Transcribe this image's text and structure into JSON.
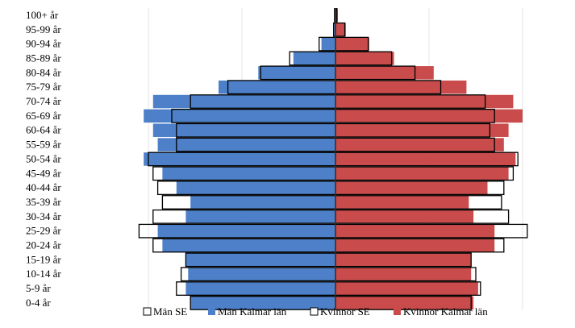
{
  "chart_data": {
    "type": "bar",
    "orientation": "horizontal",
    "categories": [
      "0-4 år",
      "5-9 år",
      "10-14 år",
      "15-19 år",
      "20-24 år",
      "25-29 år",
      "30-34 år",
      "35-39 år",
      "40-44 år",
      "45-49 år",
      "50-54 år",
      "55-59 år",
      "60-64 år",
      "65-69 år",
      "70-74 år",
      "75-79 år",
      "80-84 år",
      "85-89 år",
      "90-94 år",
      "95-99 år",
      "100+ år"
    ],
    "series": [
      {
        "name": "Män SE",
        "side": "left",
        "color": "#ffffff",
        "values": [
          3.1,
          3.4,
          3.3,
          3.2,
          3.9,
          4.2,
          3.9,
          3.7,
          3.8,
          3.9,
          4.0,
          3.4,
          3.4,
          3.5,
          3.1,
          2.3,
          1.6,
          0.98,
          0.35,
          0.04,
          0.02
        ]
      },
      {
        "name": "Män Kalmar län",
        "side": "left",
        "color": "#4d80c8",
        "values": [
          3.1,
          3.2,
          3.15,
          3.2,
          3.7,
          3.8,
          3.2,
          3.1,
          3.4,
          3.7,
          4.1,
          3.8,
          3.9,
          4.1,
          3.9,
          2.5,
          1.65,
          0.9,
          0.3,
          0.03,
          0.01
        ]
      },
      {
        "name": "Kvinnor SE",
        "side": "right",
        "color": "#ffffff",
        "values": [
          2.9,
          3.1,
          3.0,
          2.9,
          3.6,
          4.1,
          3.7,
          3.55,
          3.6,
          3.8,
          3.9,
          3.4,
          3.3,
          3.4,
          3.2,
          2.25,
          1.7,
          1.2,
          0.7,
          0.2,
          0.03
        ]
      },
      {
        "name": "Kvinnor Kalmar län",
        "side": "right",
        "color": "#c94b4b",
        "values": [
          2.95,
          3.05,
          2.9,
          2.9,
          3.4,
          3.4,
          2.95,
          2.85,
          3.25,
          3.7,
          3.85,
          3.6,
          3.7,
          4.0,
          3.8,
          2.8,
          2.1,
          1.25,
          0.72,
          0.22,
          0.05
        ]
      }
    ],
    "legend_position": "bottom",
    "grid": "vertical"
  }
}
